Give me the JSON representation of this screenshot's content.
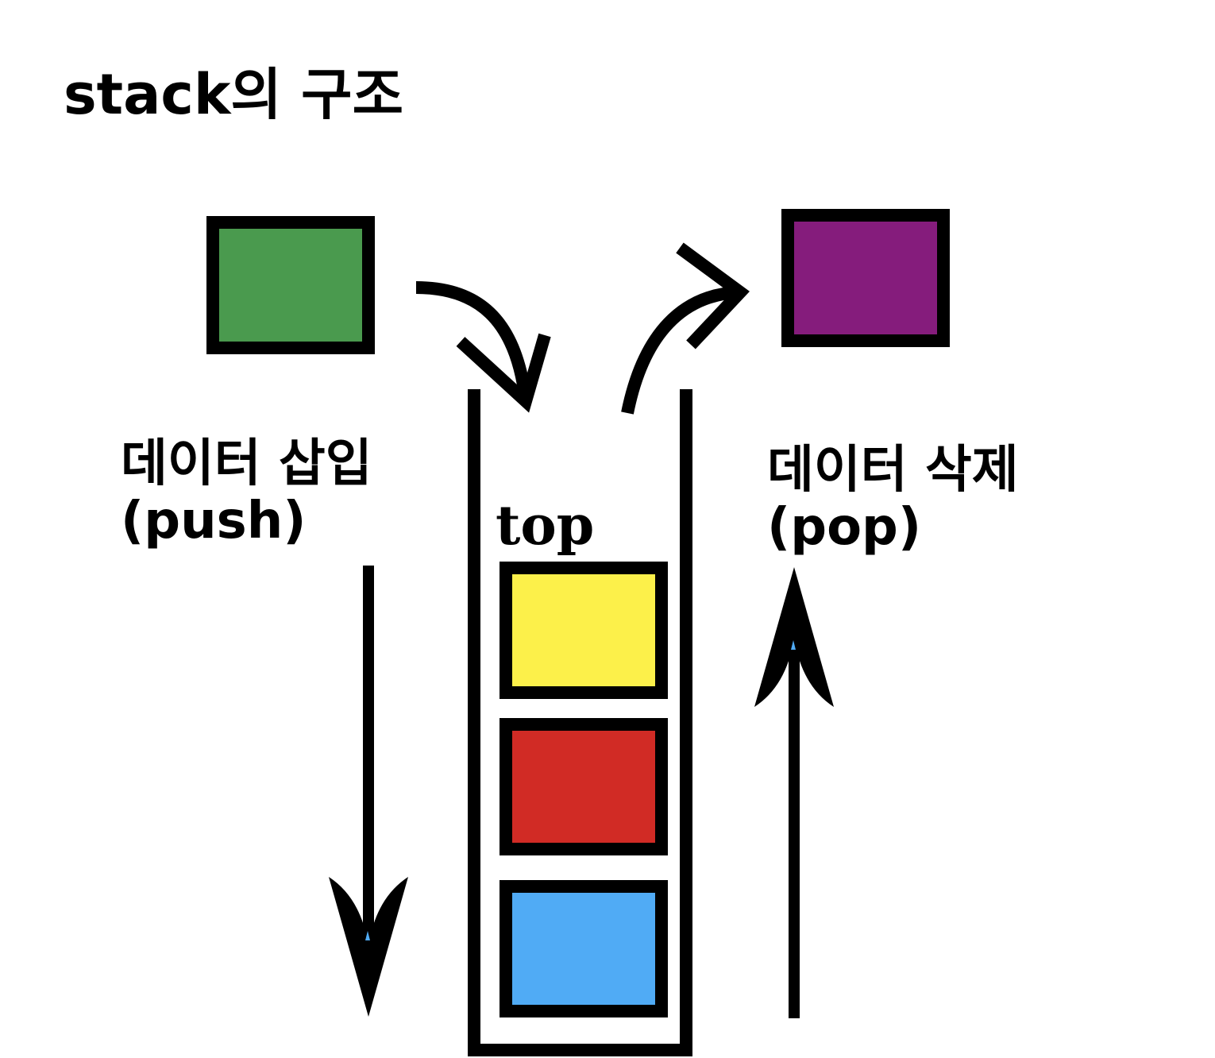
{
  "title": "stack의 구조",
  "push": {
    "line1": "데이터 삽입",
    "line2": "(push)"
  },
  "pop": {
    "line1": "데이터 삭제",
    "line2": "(pop)"
  },
  "top_label": "top",
  "colors": {
    "incoming_block": "#4a9a4e",
    "popped_block": "#851c7c",
    "stack_top_block": "#fcf04a",
    "stack_middle_block": "#d12b25",
    "stack_bottom_block": "#50abf5",
    "outline": "#000000"
  }
}
